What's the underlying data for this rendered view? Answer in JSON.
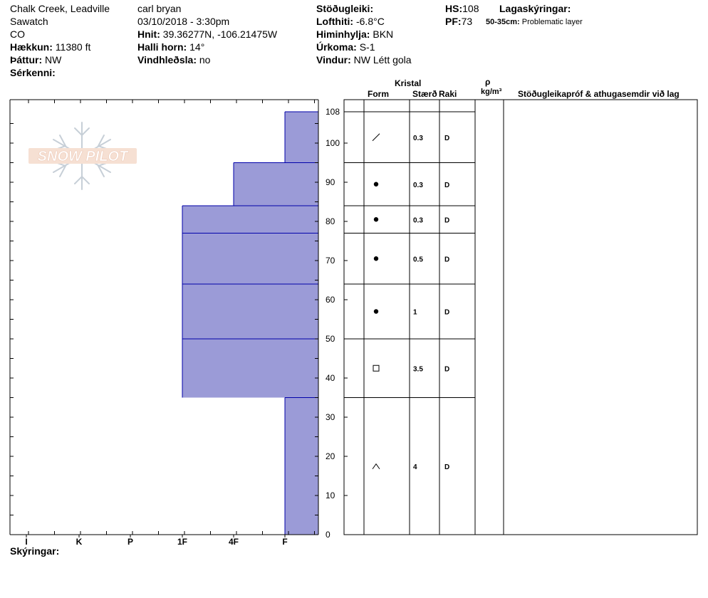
{
  "header": {
    "location": "Chalk Creek, Leadville",
    "range": "Sawatch",
    "state": "CO",
    "elevation_label": "Hækkun:",
    "elevation_value": "11380 ft",
    "aspect_label": "Þáttur:",
    "aspect_value": "NW",
    "features_label": "Sérkenni:",
    "observer": "carl bryan",
    "datetime": "03/10/2018 - 3:30pm",
    "coords_label": "Hnit:",
    "coords_value": "39.36277N, -106.21475W",
    "slope_label": "Halli horn:",
    "slope_value": "14°",
    "windload_label": "Vindhleðsla:",
    "windload_value": "no",
    "stability_label": "Stöðugleiki:",
    "airtemp_label": "Lofthiti:",
    "airtemp_value": "-6.8°C",
    "sky_label": "Himinhylja:",
    "sky_value": "BKN",
    "precip_label": "Úrkoma:",
    "precip_value": "S-1",
    "wind_label": "Vindur:",
    "wind_value": "NW Létt gola",
    "hs_label": "HS:",
    "hs_value": "108",
    "pf_label": "PF:",
    "pf_value": "73",
    "layer_notes_label": "Lagaskýringar:",
    "layer_note_range": "50-35cm:",
    "layer_note_text": "Problematic layer",
    "notes_label": "Skýringar:"
  },
  "logo_text": "SNOW PILOT",
  "table_headers": {
    "kristal": "Kristal",
    "form": "Form",
    "size": "Stærð",
    "moisture": "Raki",
    "rho": "ρ",
    "density_unit": "kg/m³",
    "comments": "Stöðugleikapróf & athugasemdir við lag"
  },
  "colors": {
    "hardness_fill": "#9b9bd7",
    "layer_line": "#0000aa"
  },
  "chart_data": {
    "type": "bar",
    "title": "",
    "xlabel": "",
    "ylabel": "",
    "ylim": [
      0,
      108
    ],
    "yticks": [
      0,
      10,
      20,
      30,
      40,
      50,
      60,
      70,
      80,
      90,
      100,
      108
    ],
    "hardness_scale": [
      "I",
      "K",
      "P",
      "1F",
      "4F",
      "F"
    ],
    "layers": [
      {
        "top": 108,
        "bottom": 95,
        "hardness": "F"
      },
      {
        "top": 95,
        "bottom": 84,
        "hardness": "4F"
      },
      {
        "top": 84,
        "bottom": 77,
        "hardness": "1F"
      },
      {
        "top": 77,
        "bottom": 64,
        "hardness": "1F"
      },
      {
        "top": 64,
        "bottom": 50,
        "hardness": "1F"
      },
      {
        "top": 50,
        "bottom": 35,
        "hardness": "1F"
      },
      {
        "top": 35,
        "bottom": 0,
        "hardness": "F"
      }
    ],
    "grain_layers": [
      {
        "top": 108,
        "bottom": 95,
        "form": "slash",
        "size": "0.3",
        "moisture": "D"
      },
      {
        "top": 95,
        "bottom": 84,
        "form": "dot",
        "size": "0.3",
        "moisture": "D"
      },
      {
        "top": 84,
        "bottom": 77,
        "form": "dot",
        "size": "0.3",
        "moisture": "D"
      },
      {
        "top": 77,
        "bottom": 64,
        "form": "dot",
        "size": "0.5",
        "moisture": "D"
      },
      {
        "top": 64,
        "bottom": 50,
        "form": "dot",
        "size": "1",
        "moisture": "D"
      },
      {
        "top": 50,
        "bottom": 35,
        "form": "square",
        "size": "3.5",
        "moisture": "D"
      },
      {
        "top": 35,
        "bottom": 0,
        "form": "caret",
        "size": "4",
        "moisture": "D"
      }
    ]
  }
}
